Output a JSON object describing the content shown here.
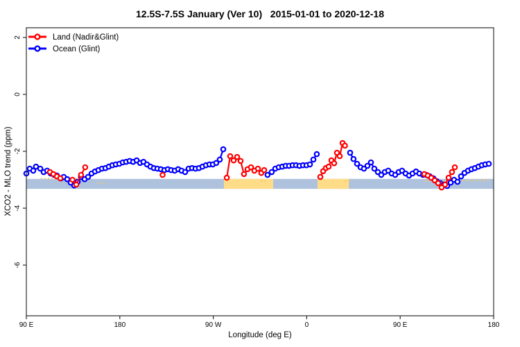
{
  "title": "12.5S-7.5S January (Ver 10)   2015-01-01 to 2020-12-18",
  "legend": {
    "items": [
      {
        "label": "Land (Nadir&Glint)",
        "color": "#ff0000"
      },
      {
        "label": "Ocean (Glint)",
        "color": "#0000ff"
      }
    ]
  },
  "chart_data": {
    "type": "line",
    "title": "12.5S-7.5S January (Ver 10)   2015-01-01 to 2020-12-18",
    "xlabel": "Longitude (deg E)",
    "ylabel": "XCO2 - MLO trend (ppm)",
    "x_axis": {
      "range": [
        90,
        540
      ],
      "ticks": [
        90,
        180,
        270,
        360,
        450,
        540
      ],
      "tick_labels": [
        "90 E",
        "180",
        "90 W",
        "0",
        "90 E",
        "180"
      ],
      "note": "longitude wraps eastward: 90E > 180 > 90W > 0 > 90E > 180"
    },
    "y_axis": {
      "ticks": [
        2,
        0,
        -2,
        -4,
        -6
      ],
      "tick_labels": [
        "2",
        "0",
        "-2",
        "-4",
        "-6"
      ],
      "range": [
        -7.8,
        2.34
      ]
    },
    "grid": false,
    "legend_position": "top-left-inside",
    "band": {
      "name": "reference-band",
      "v_top": -2.97,
      "v_bottom": -3.32,
      "ocean_color": "#afc2dd",
      "land_color": "#ffdc87",
      "land_segments": [
        {
          "from": 280.3,
          "to": 327.7
        },
        {
          "from": 370.4,
          "to": 400.5
        }
      ]
    },
    "dashed_hints": {
      "color": "#f3c75f",
      "segments": [
        {
          "from": 104,
          "to": 140,
          "v": -2.96
        },
        {
          "from": 159,
          "to": 166,
          "v": -3.12
        },
        {
          "from": 316,
          "to": 322,
          "v": -3.05
        },
        {
          "from": 397,
          "to": 404,
          "v": -3.05
        },
        {
          "from": 474,
          "to": 496,
          "v": -3.05
        },
        {
          "from": 510,
          "to": 536,
          "v": -3.02
        }
      ]
    },
    "series": [
      {
        "name": "Ocean (Glint)",
        "color": "#0000ff",
        "segments": [
          [
            [
              90,
              -2.78
            ],
            [
              93.3,
              -2.61
            ],
            [
              96.7,
              -2.68
            ],
            [
              99.3,
              -2.54
            ],
            [
              103.4,
              -2.61
            ],
            [
              106.7,
              -2.73
            ],
            [
              110,
              -2.68
            ],
            [
              113.4,
              -2.78
            ],
            [
              116.7,
              -2.83
            ],
            [
              119.4,
              -2.85
            ],
            [
              123.4,
              -2.95
            ],
            [
              126,
              -2.9
            ],
            [
              129.4,
              -2.98
            ],
            [
              132.7,
              -3.1
            ],
            [
              136.1,
              -3.2
            ],
            [
              139.4,
              -3.07
            ],
            [
              142.7,
              -2.9
            ],
            [
              146.1,
              -2.98
            ],
            [
              149.4,
              -2.9
            ],
            [
              152.8,
              -2.78
            ],
            [
              156.1,
              -2.71
            ],
            [
              159.4,
              -2.66
            ],
            [
              162.8,
              -2.61
            ],
            [
              166.1,
              -2.59
            ],
            [
              169.4,
              -2.54
            ],
            [
              172.8,
              -2.49
            ],
            [
              176.1,
              -2.46
            ],
            [
              179.5,
              -2.44
            ],
            [
              182.8,
              -2.39
            ],
            [
              186.1,
              -2.37
            ],
            [
              189.5,
              -2.34
            ],
            [
              192.8,
              -2.37
            ],
            [
              196.2,
              -2.32
            ],
            [
              199.5,
              -2.41
            ],
            [
              202.8,
              -2.37
            ],
            [
              206.2,
              -2.46
            ],
            [
              209.5,
              -2.54
            ],
            [
              212.8,
              -2.59
            ],
            [
              216.2,
              -2.61
            ],
            [
              219.5,
              -2.63
            ],
            [
              222.9,
              -2.66
            ],
            [
              226.2,
              -2.63
            ],
            [
              229.5,
              -2.66
            ],
            [
              232.9,
              -2.68
            ],
            [
              236.2,
              -2.63
            ],
            [
              239.5,
              -2.68
            ],
            [
              242.9,
              -2.73
            ],
            [
              246.2,
              -2.61
            ],
            [
              249.6,
              -2.59
            ],
            [
              252.9,
              -2.61
            ],
            [
              256.2,
              -2.59
            ],
            [
              259.6,
              -2.54
            ],
            [
              262.9,
              -2.49
            ],
            [
              266.3,
              -2.46
            ],
            [
              269.6,
              -2.46
            ],
            [
              272.9,
              -2.41
            ],
            [
              276.3,
              -2.29
            ],
            [
              279.6,
              -1.93
            ]
          ],
          [
            [
              322.3,
              -2.83
            ],
            [
              326.3,
              -2.73
            ],
            [
              329.7,
              -2.61
            ],
            [
              333,
              -2.56
            ],
            [
              336.4,
              -2.54
            ],
            [
              339.7,
              -2.51
            ],
            [
              343,
              -2.51
            ],
            [
              346.4,
              -2.49
            ],
            [
              349.7,
              -2.49
            ],
            [
              353,
              -2.51
            ],
            [
              356.4,
              -2.49
            ],
            [
              359.7,
              -2.49
            ],
            [
              363.1,
              -2.46
            ],
            [
              366.4,
              -2.29
            ],
            [
              369.7,
              -2.1
            ]
          ],
          [
            [
              401.8,
              -2.05
            ],
            [
              405.1,
              -2.27
            ],
            [
              408.5,
              -2.44
            ],
            [
              411.8,
              -2.56
            ],
            [
              415.1,
              -2.61
            ],
            [
              418.5,
              -2.51
            ],
            [
              421.8,
              -2.39
            ],
            [
              425.1,
              -2.61
            ],
            [
              428.5,
              -2.73
            ],
            [
              431.8,
              -2.83
            ],
            [
              435.2,
              -2.73
            ],
            [
              438.5,
              -2.68
            ],
            [
              441.8,
              -2.78
            ],
            [
              445.2,
              -2.83
            ],
            [
              448.5,
              -2.73
            ],
            [
              451.8,
              -2.68
            ],
            [
              455.2,
              -2.78
            ],
            [
              458.5,
              -2.85
            ],
            [
              461.9,
              -2.78
            ],
            [
              465.2,
              -2.71
            ],
            [
              468.5,
              -2.78
            ],
            [
              471.9,
              -2.83
            ],
            [
              475.2,
              -2.83
            ],
            [
              478.5,
              -2.88
            ],
            [
              481.9,
              -2.95
            ],
            [
              485.2,
              -3.05
            ],
            [
              488.6,
              -3.12
            ],
            [
              491.9,
              -3.17
            ],
            [
              495.2,
              -3.22
            ],
            [
              498.6,
              -3.1
            ],
            [
              501.9,
              -3.0
            ],
            [
              505.2,
              -3.07
            ],
            [
              508.6,
              -2.88
            ],
            [
              511.9,
              -2.76
            ],
            [
              515.3,
              -2.68
            ],
            [
              518.6,
              -2.63
            ],
            [
              521.9,
              -2.59
            ],
            [
              525.3,
              -2.54
            ],
            [
              528.6,
              -2.49
            ],
            [
              531.9,
              -2.46
            ],
            [
              535.3,
              -2.44
            ]
          ]
        ]
      },
      {
        "name": "Land (Nadir&Glint)",
        "color": "#ff0000",
        "segments": [
          [
            [
              112.7,
              -2.73
            ],
            [
              116,
              -2.8
            ],
            [
              119.4,
              -2.88
            ],
            [
              122.7,
              -2.95
            ]
          ],
          [
            [
              134.4,
              -3.0
            ],
            [
              138.1,
              -3.17
            ],
            [
              142.7,
              -2.83
            ],
            [
              146.7,
              -2.56
            ]
          ],
          [
            [
              221.2,
              -2.83
            ]
          ],
          [
            [
              283,
              -2.93
            ],
            [
              286.3,
              -2.17
            ],
            [
              289.6,
              -2.32
            ],
            [
              293,
              -2.2
            ],
            [
              296.3,
              -2.34
            ],
            [
              299.6,
              -2.8
            ],
            [
              303,
              -2.63
            ],
            [
              306.3,
              -2.56
            ],
            [
              309.6,
              -2.68
            ],
            [
              313,
              -2.61
            ],
            [
              316.3,
              -2.76
            ],
            [
              319,
              -2.66
            ]
          ],
          [
            [
              373.1,
              -2.9
            ],
            [
              375.8,
              -2.7
            ],
            [
              378.4,
              -2.59
            ],
            [
              381.1,
              -2.54
            ],
            [
              383.8,
              -2.32
            ],
            [
              386.4,
              -2.42
            ],
            [
              389.1,
              -2.05
            ],
            [
              391.8,
              -2.17
            ],
            [
              394.5,
              -1.71
            ],
            [
              396.8,
              -1.8
            ]
          ],
          [
            [
              473.2,
              -2.8
            ],
            [
              476.6,
              -2.85
            ],
            [
              479.9,
              -2.93
            ],
            [
              483.2,
              -3.02
            ],
            [
              486.6,
              -3.12
            ],
            [
              489.9,
              -3.27
            ],
            [
              493.2,
              -3.17
            ],
            [
              496.6,
              -2.93
            ],
            [
              499.9,
              -2.73
            ],
            [
              502.6,
              -2.56
            ]
          ]
        ]
      }
    ]
  }
}
